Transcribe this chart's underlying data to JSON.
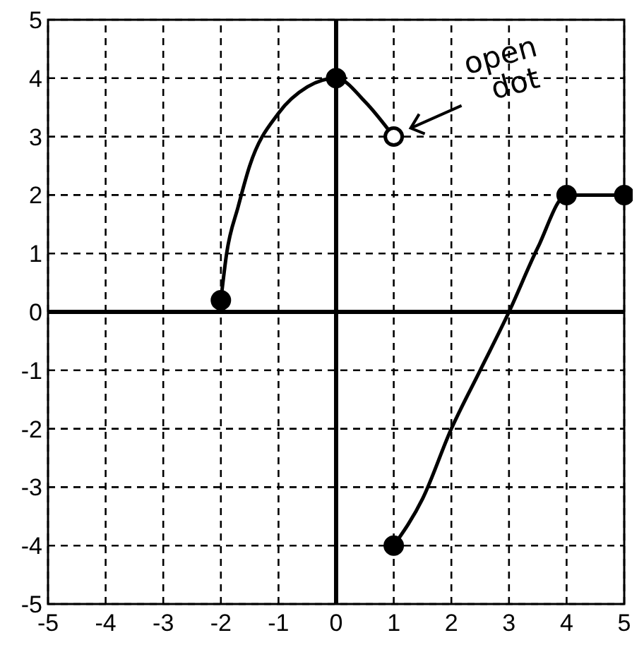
{
  "chart_data": {
    "type": "line",
    "xlim": [
      -5,
      5
    ],
    "ylim": [
      -5,
      5
    ],
    "xticks": [
      -5,
      -4,
      -3,
      -2,
      -1,
      0,
      1,
      2,
      3,
      4,
      5
    ],
    "yticks": [
      -5,
      -4,
      -3,
      -2,
      -1,
      0,
      1,
      2,
      3,
      4,
      5
    ],
    "grid": true,
    "series": [
      {
        "marker": "none",
        "color": "#000000",
        "x": [
          -2,
          -1.9,
          -1.7,
          -1.5,
          -1,
          -0.5,
          0,
          0.5,
          1
        ],
        "values": [
          0.2,
          1,
          1.8,
          2.5,
          3.4,
          3.85,
          4,
          3.6,
          3
        ]
      },
      {
        "marker": "none",
        "color": "#000000",
        "x": [
          1,
          1.5,
          2,
          2.5,
          3,
          3.5,
          4,
          4.5,
          5
        ],
        "values": [
          -4,
          -3.2,
          -2,
          -1,
          0,
          1.1,
          2,
          2,
          2
        ]
      },
      {
        "type": "scatter",
        "marker": "circle",
        "color": "#000000",
        "x": [
          -2,
          0,
          1,
          4,
          5
        ],
        "values": [
          0.2,
          4,
          -4,
          2,
          2
        ]
      },
      {
        "type": "scatter",
        "marker": "circle",
        "color": "#ffffff",
        "x": [
          1
        ],
        "values": [
          3
        ]
      }
    ],
    "annotations": [
      {
        "text": "open dot",
        "x": 1,
        "y": 3
      }
    ]
  }
}
